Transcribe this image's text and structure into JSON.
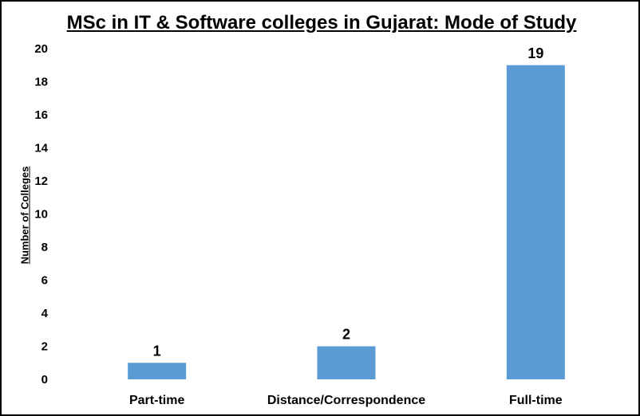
{
  "chart_data": {
    "type": "bar",
    "title": "MSc in IT & Software colleges in Gujarat: Mode of Study",
    "xlabel": "",
    "ylabel": "Number of Colleges",
    "categories": [
      "Part-time",
      "Distance/Correspondence",
      "Full-time"
    ],
    "values": [
      1,
      2,
      19
    ],
    "data_labels": [
      "1",
      "2",
      "19"
    ],
    "yticks": [
      "0",
      "2",
      "4",
      "6",
      "8",
      "10",
      "12",
      "14",
      "16",
      "18",
      "20"
    ],
    "ylim": [
      0,
      20
    ],
    "grid": false,
    "legend": "none",
    "bar_color": "#5b9bd5"
  }
}
